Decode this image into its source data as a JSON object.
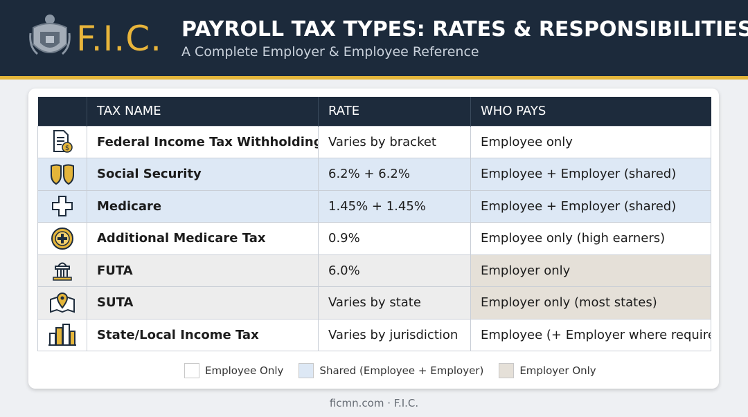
{
  "header": {
    "logo": "F.I.C.",
    "title": "PAYROLL TAX TYPES: RATES & RESPONSIBILITIES",
    "subtitle": "A Complete Employer & Employee Reference"
  },
  "table": {
    "columns": [
      "TAX NAME",
      "RATE",
      "WHO PAYS"
    ],
    "rows": [
      {
        "icon": "document-dollar-icon",
        "name": "Federal Income Tax Withholding",
        "rate": "Varies by bracket",
        "who": "Employee only",
        "category": "employee"
      },
      {
        "icon": "shield-icon",
        "name": "Social Security",
        "rate": "6.2% + 6.2%",
        "who": "Employee + Employer (shared)",
        "category": "shared"
      },
      {
        "icon": "medical-cross-icon",
        "name": "Medicare",
        "rate": "1.45% + 1.45%",
        "who": "Employee + Employer (shared)",
        "category": "shared"
      },
      {
        "icon": "plus-circle-icon",
        "name": "Additional Medicare Tax",
        "rate": "0.9%",
        "who": "Employee only (high earners)",
        "category": "employee"
      },
      {
        "icon": "capitol-building-icon",
        "name": "FUTA",
        "rate": "6.0%",
        "who": "Employer only",
        "category": "employer"
      },
      {
        "icon": "map-pin-icon",
        "name": "SUTA",
        "rate": "Varies by state",
        "who": "Employer only (most states)",
        "category": "employer"
      },
      {
        "icon": "city-buildings-icon",
        "name": "State/Local Income Tax",
        "rate": "Varies by jurisdiction",
        "who": "Employee (+ Employer where required)",
        "category": "employee"
      }
    ]
  },
  "legend": [
    {
      "label": "Employee Only",
      "color": "#ffffff"
    },
    {
      "label": "Shared (Employee + Employer)",
      "color": "#dde8f5"
    },
    {
      "label": "Employer Only",
      "color": "#e5e0d8"
    }
  ],
  "footer": "ficmn.com · F.I.C.",
  "colors": {
    "navy": "#1c2a3b",
    "gold": "#e4b53a"
  }
}
